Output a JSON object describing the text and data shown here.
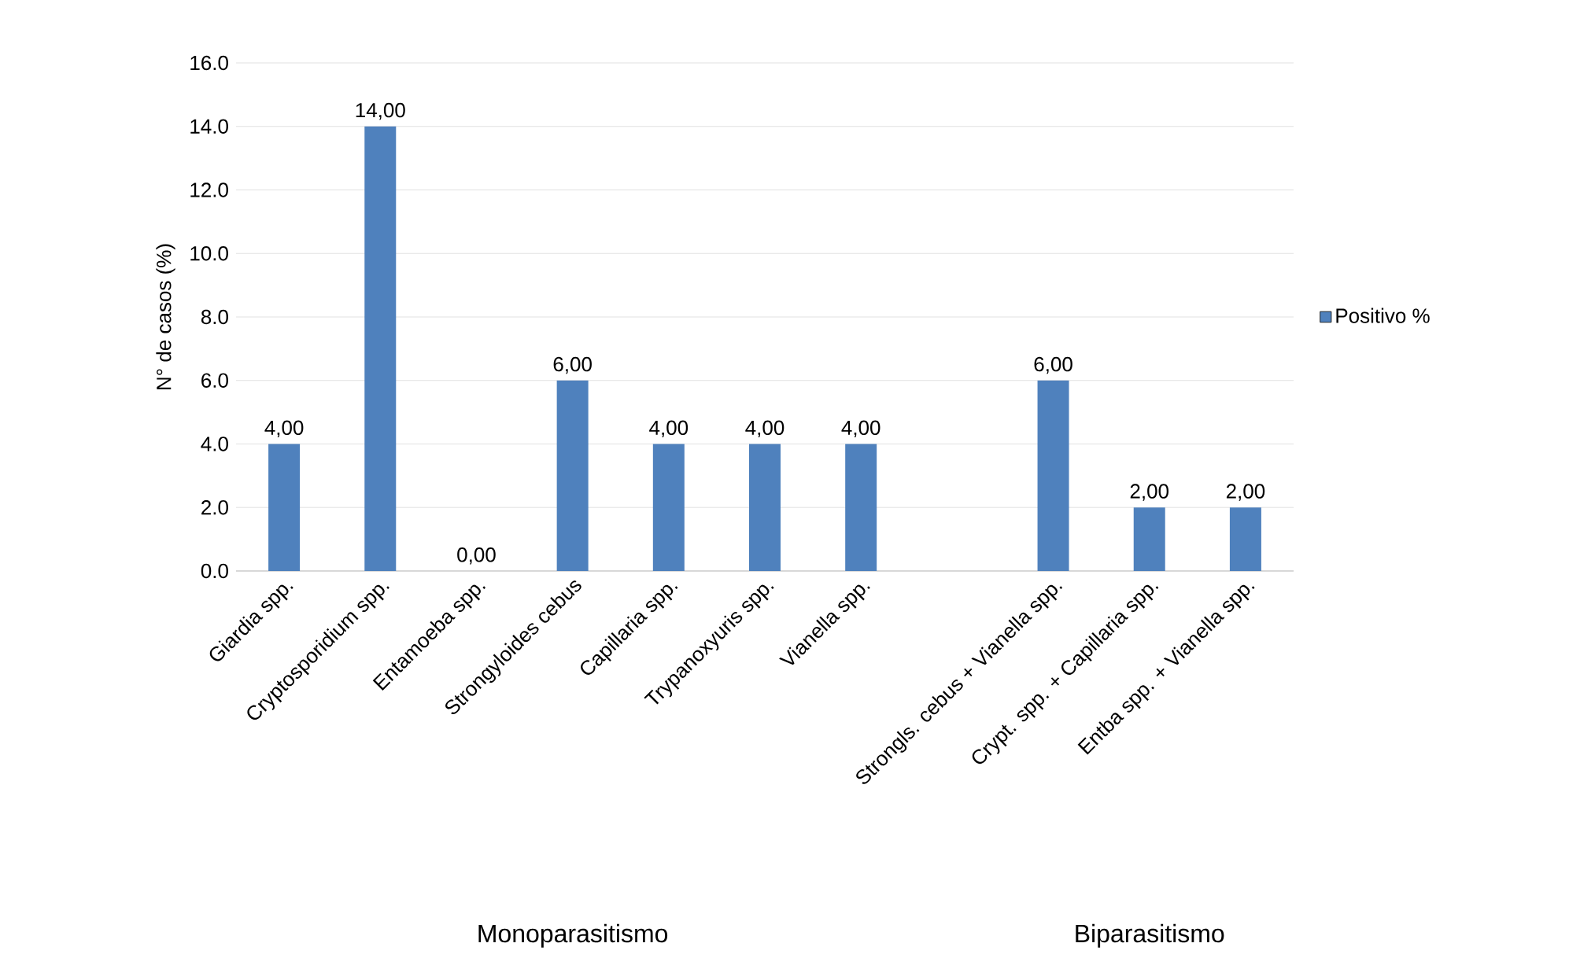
{
  "chart_data": {
    "type": "bar",
    "categories": [
      "Giardia spp.",
      "Cryptosporidium spp.",
      "Entamoeba spp.",
      "Strongyloides cebus",
      "Capillaria spp.",
      "Trypanoxyuris spp.",
      "Vianella spp.",
      null,
      "Strongls. cebus + Vianella spp.",
      "Crypt. spp. + Capillaria spp.",
      "Entba spp. + Vianella spp."
    ],
    "series": [
      {
        "name": "Positivo %",
        "color": "#4f81bd",
        "values": [
          4,
          14,
          0,
          6,
          4,
          4,
          4,
          null,
          6,
          2,
          2
        ],
        "value_labels": [
          "4,00",
          "14,00",
          "0,00",
          "6,00",
          "4,00",
          "4,00",
          "4,00",
          null,
          "6,00",
          "2,00",
          "2,00"
        ]
      }
    ],
    "ylabel": "N° de casos (%)",
    "ylim": [
      0,
      16
    ],
    "yticks": [
      {
        "value": 0,
        "label": "0.0"
      },
      {
        "value": 2,
        "label": "2.0"
      },
      {
        "value": 4,
        "label": "4.0"
      },
      {
        "value": 6,
        "label": "6.0"
      },
      {
        "value": 8,
        "label": "8.0"
      },
      {
        "value": 10,
        "label": "10.0"
      },
      {
        "value": 12,
        "label": "12.0"
      },
      {
        "value": 14,
        "label": "14.0"
      },
      {
        "value": 16,
        "label": "16.0"
      }
    ],
    "grid": "y",
    "legend": "right",
    "annotations": [
      "Monoparasitismo",
      "Biparasitismo"
    ]
  }
}
